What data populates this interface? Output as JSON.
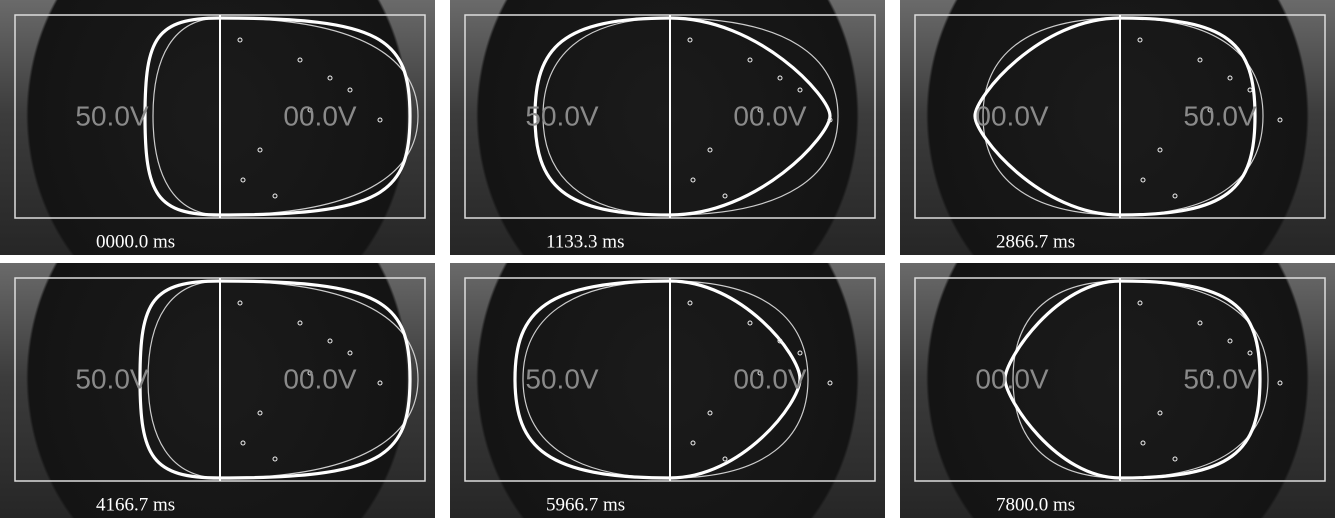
{
  "panels": [
    {
      "left_voltage": "50.0V",
      "right_voltage": "00.0V",
      "time": "0000.0 ms"
    },
    {
      "left_voltage": "50.0V",
      "right_voltage": "00.0V",
      "time": "1133.3 ms"
    },
    {
      "left_voltage": "00.0V",
      "right_voltage": "50.0V",
      "time": "2866.7 ms"
    },
    {
      "left_voltage": "50.0V",
      "right_voltage": "00.0V",
      "time": "4166.7 ms"
    },
    {
      "left_voltage": "50.0V",
      "right_voltage": "00.0V",
      "time": "5966.7 ms"
    },
    {
      "left_voltage": "00.0V",
      "right_voltage": "50.0V",
      "time": "7800.0 ms"
    }
  ]
}
